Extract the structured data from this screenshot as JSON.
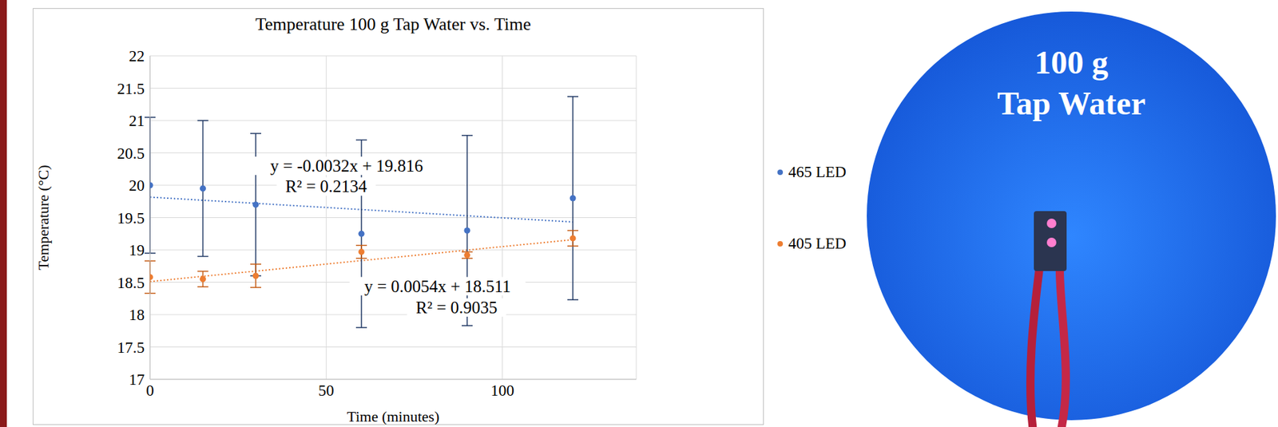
{
  "chart_data": {
    "type": "scatter",
    "title": "Temperature 100 g Tap Water vs. Time",
    "x_label": "Time (minutes)",
    "y_label": "Temperature (°C)",
    "xlim": [
      0,
      138
    ],
    "xticks": [
      0,
      50,
      100
    ],
    "ylim": [
      17,
      22
    ],
    "yticks": [
      17,
      17.5,
      18,
      18.5,
      19,
      19.5,
      20,
      20.5,
      21,
      21.5,
      22
    ],
    "grid": true,
    "legend": "right",
    "series": [
      {
        "name": "465 LED",
        "color": "#4472c4",
        "marker": "circle",
        "x": [
          0,
          15,
          30,
          60,
          90,
          120
        ],
        "values": [
          20.0,
          19.95,
          19.7,
          19.25,
          19.3,
          19.8
        ],
        "error": [
          1.05,
          1.05,
          1.1,
          1.45,
          1.47,
          1.57
        ],
        "trendline": {
          "slope": -0.0032,
          "intercept": 19.816,
          "equation": "y = -0.0032x + 19.816",
          "r2": "R² = 0.2134",
          "line_style": "dotted"
        }
      },
      {
        "name": "405 LED",
        "color": "#ed7d31",
        "marker": "circle",
        "x": [
          0,
          15,
          30,
          60,
          90,
          120
        ],
        "values": [
          18.58,
          18.55,
          18.6,
          18.97,
          18.92,
          19.18
        ],
        "error": [
          0.25,
          0.12,
          0.18,
          0.1,
          0.05,
          0.12
        ],
        "trendline": {
          "slope": 0.0054,
          "intercept": 18.511,
          "equation": "y = 0.0054x + 18.511",
          "r2": "R² = 0.9035",
          "line_style": "dotted"
        }
      }
    ]
  },
  "photo": {
    "label_lines": [
      "100 g",
      "Tap Water"
    ]
  }
}
